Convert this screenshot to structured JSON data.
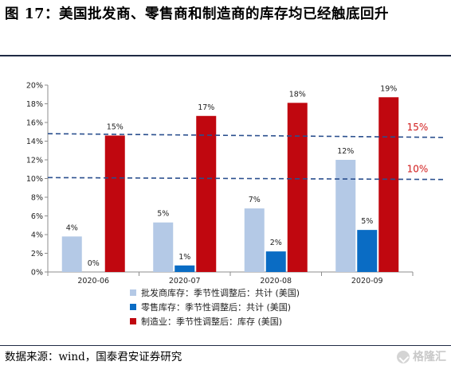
{
  "page": {
    "title": "图 17：美国批发商、零售商和制造商的库存均已经触底回升",
    "source": "数据来源：wind，国泰君安证券研究",
    "watermark": "格隆汇"
  },
  "chart_data": {
    "type": "bar",
    "categories": [
      "2020-06",
      "2020-07",
      "2020-08",
      "2020-09"
    ],
    "ylim": [
      0,
      20
    ],
    "yticks": [
      0,
      2,
      4,
      6,
      8,
      10,
      12,
      14,
      16,
      18,
      20
    ],
    "ytick_format": "%",
    "grid": false,
    "legend_position": "bottom",
    "series": [
      {
        "name": "批发商库存：季节性调整后：共计 (美国)",
        "color": "#b4c9e6",
        "values": [
          3.8,
          5.3,
          6.8,
          12.0
        ],
        "labels": [
          "4%",
          "5%",
          "7%",
          "12%"
        ]
      },
      {
        "name": "零售库存：季节性调整后：共计 (美国)",
        "color": "#0a6cc4",
        "values": [
          0.0,
          0.7,
          2.2,
          4.5
        ],
        "labels": [
          "0%",
          "1%",
          "2%",
          "5%"
        ]
      },
      {
        "name": "制造业：季节性调整后：库存 (美国)",
        "color": "#c0070f",
        "values": [
          14.6,
          16.7,
          18.1,
          18.7
        ],
        "labels": [
          "15%",
          "17%",
          "18%",
          "19%"
        ]
      }
    ],
    "reference_lines": [
      {
        "value": 14.8,
        "end_value": 14.4,
        "label": "15%",
        "color": "#2a4f8e"
      },
      {
        "value": 10.1,
        "end_value": 9.9,
        "label": "10%",
        "color": "#2a4f8e"
      }
    ],
    "annotation_color": "#d11a1a"
  }
}
